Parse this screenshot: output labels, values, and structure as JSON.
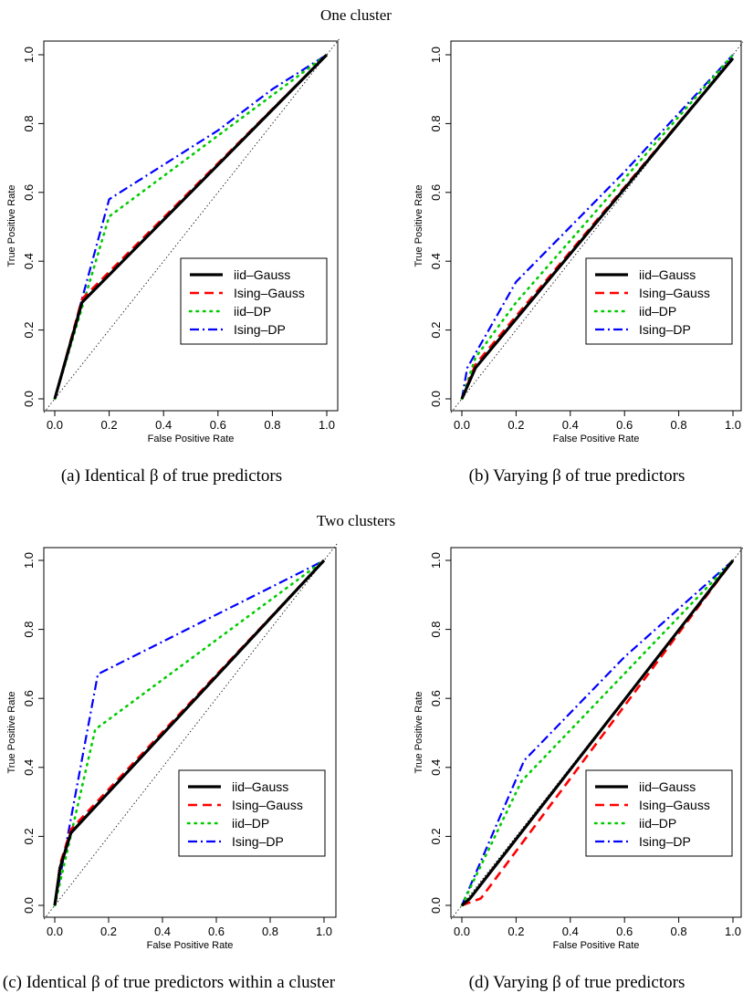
{
  "section_titles": [
    "One cluster",
    "Two clusters"
  ],
  "chart_data": [
    {
      "type": "line",
      "caption": "(a) Identical β of true predictors",
      "xlabel": "False Positive Rate",
      "ylabel": "True Positive Rate",
      "xlim": [
        0,
        1
      ],
      "ylim": [
        0,
        1
      ],
      "xticks": [
        "0.0",
        "0.2",
        "0.4",
        "0.6",
        "0.8",
        "1.0"
      ],
      "yticks": [
        "0.0",
        "0.2",
        "0.4",
        "0.6",
        "0.8",
        "1.0"
      ],
      "legend": [
        "iid–Gauss",
        "Ising–Gauss",
        "iid–DP",
        "Ising–DP"
      ],
      "series": [
        {
          "name": "iid–Gauss",
          "color": "#000000",
          "x": [
            0,
            0.1,
            1.0
          ],
          "y": [
            0,
            0.28,
            1.0
          ]
        },
        {
          "name": "Ising–Gauss",
          "color": "#ff0000",
          "x": [
            0,
            0.1,
            1.0
          ],
          "y": [
            0,
            0.29,
            1.0
          ]
        },
        {
          "name": "iid–DP",
          "color": "#00cc00",
          "x": [
            0,
            0.2,
            1.0
          ],
          "y": [
            0,
            0.53,
            1.0
          ]
        },
        {
          "name": "Ising–DP",
          "color": "#0000ff",
          "x": [
            0,
            0.2,
            0.6,
            0.8,
            1.0
          ],
          "y": [
            0,
            0.58,
            0.78,
            0.9,
            1.0
          ]
        }
      ]
    },
    {
      "type": "line",
      "caption": "(b) Varying β of true predictors",
      "xlabel": "False Positive Rate",
      "ylabel": "True Positive Rate",
      "xlim": [
        0,
        1
      ],
      "ylim": [
        0,
        1
      ],
      "xticks": [
        "0.0",
        "0.2",
        "0.4",
        "0.6",
        "0.8",
        "1.0"
      ],
      "yticks": [
        "0.0",
        "0.2",
        "0.4",
        "0.6",
        "0.8",
        "1.0"
      ],
      "legend": [
        "iid–Gauss",
        "Ising–Gauss",
        "iid–DP",
        "Ising–DP"
      ],
      "series": [
        {
          "name": "iid–Gauss",
          "color": "#000000",
          "x": [
            0,
            0.05,
            1.0
          ],
          "y": [
            0,
            0.09,
            0.99
          ]
        },
        {
          "name": "Ising–Gauss",
          "color": "#ff0000",
          "x": [
            0,
            0.05,
            1.0
          ],
          "y": [
            0,
            0.1,
            0.99
          ]
        },
        {
          "name": "iid–DP",
          "color": "#00cc00",
          "x": [
            0,
            0.05,
            0.2,
            1.0
          ],
          "y": [
            0,
            0.12,
            0.28,
            1.0
          ]
        },
        {
          "name": "Ising–DP",
          "color": "#0000ff",
          "x": [
            0,
            0.02,
            0.2,
            0.6,
            1.0
          ],
          "y": [
            0,
            0.09,
            0.34,
            0.66,
            1.0
          ]
        }
      ]
    },
    {
      "type": "line",
      "caption": "(c) Identical β of true predictors within a cluster",
      "xlabel": "False Positive Rate",
      "ylabel": "True Positive Rate",
      "xlim": [
        0,
        1
      ],
      "ylim": [
        0,
        1
      ],
      "xticks": [
        "0.0",
        "0.2",
        "0.4",
        "0.6",
        "0.8",
        "1.0"
      ],
      "yticks": [
        "0.0",
        "0.2",
        "0.4",
        "0.6",
        "0.8",
        "1.0"
      ],
      "legend": [
        "iid–Gauss",
        "Ising–Gauss",
        "iid–DP",
        "Ising–DP"
      ],
      "series": [
        {
          "name": "iid–Gauss",
          "color": "#000000",
          "x": [
            0,
            0.02,
            0.06,
            1.0
          ],
          "y": [
            0,
            0.11,
            0.21,
            1.0
          ]
        },
        {
          "name": "Ising–Gauss",
          "color": "#ff0000",
          "x": [
            0,
            0.02,
            0.06,
            1.0
          ],
          "y": [
            0,
            0.12,
            0.22,
            1.0
          ]
        },
        {
          "name": "iid–DP",
          "color": "#00cc00",
          "x": [
            0,
            0.15,
            1.0
          ],
          "y": [
            0,
            0.51,
            1.0
          ]
        },
        {
          "name": "Ising–DP",
          "color": "#0000ff",
          "x": [
            0,
            0.16,
            0.95,
            1.0
          ],
          "y": [
            0,
            0.67,
            0.98,
            1.0
          ]
        }
      ]
    },
    {
      "type": "line",
      "caption": "(d) Varying β of true predictors",
      "xlabel": "False Positive Rate",
      "ylabel": "True Positive Rate",
      "xlim": [
        0,
        1
      ],
      "ylim": [
        0,
        1
      ],
      "xticks": [
        "0.0",
        "0.2",
        "0.4",
        "0.6",
        "0.8",
        "1.0"
      ],
      "yticks": [
        "0.0",
        "0.2",
        "0.4",
        "0.6",
        "0.8",
        "1.0"
      ],
      "legend": [
        "iid–Gauss",
        "Ising–Gauss",
        "iid–DP",
        "Ising–DP"
      ],
      "series": [
        {
          "name": "iid–Gauss",
          "color": "#000000",
          "x": [
            0,
            0.03,
            1.0
          ],
          "y": [
            0,
            0.02,
            1.0
          ]
        },
        {
          "name": "Ising–Gauss",
          "color": "#ff0000",
          "x": [
            0,
            0.07,
            1.0
          ],
          "y": [
            0,
            0.02,
            1.0
          ]
        },
        {
          "name": "iid–DP",
          "color": "#00cc00",
          "x": [
            0,
            0.22,
            1.0
          ],
          "y": [
            0,
            0.36,
            1.0
          ]
        },
        {
          "name": "Ising–DP",
          "color": "#0000ff",
          "x": [
            0,
            0.23,
            0.6,
            1.0
          ],
          "y": [
            0,
            0.42,
            0.72,
            1.0
          ]
        }
      ]
    }
  ]
}
